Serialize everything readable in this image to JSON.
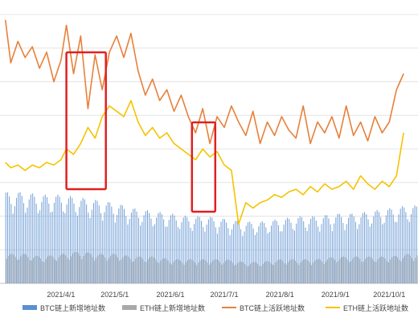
{
  "chart_data": {
    "type": "line",
    "title": "",
    "xlabel": "",
    "ylabel": "",
    "x_ticks": [
      "2021/4/1",
      "2021/5/1",
      "2021/6/1",
      "2021/7/1",
      "2021/8/1",
      "2021/9/1",
      "2021/10/1"
    ],
    "y_range_relative": [
      0,
      1
    ],
    "grid": "horizontal",
    "legend_position": "bottom",
    "highlight_boxes": [
      {
        "from": "2021/4/4",
        "to": "2021/4/26",
        "color": "#e02020"
      },
      {
        "from": "2021/6/13",
        "to": "2021/6/26",
        "color": "#e02020"
      }
    ],
    "series": [
      {
        "name": "BTC链上新增地址数",
        "type": "bar",
        "color": "#5b8fd0",
        "dates": [
          "2021/3/1",
          "2021/3/11",
          "2021/3/21",
          "2021/4/1",
          "2021/4/11",
          "2021/4/21",
          "2021/5/1",
          "2021/5/11",
          "2021/5/21",
          "2021/6/1",
          "2021/6/11",
          "2021/6/21",
          "2021/7/1",
          "2021/7/11",
          "2021/7/21",
          "2021/8/1",
          "2021/8/11",
          "2021/8/21",
          "2021/9/1",
          "2021/9/11",
          "2021/9/21",
          "2021/10/1",
          "2021/10/11"
        ],
        "values": [
          0.34,
          0.34,
          0.33,
          0.33,
          0.32,
          0.31,
          0.3,
          0.28,
          0.27,
          0.26,
          0.25,
          0.25,
          0.24,
          0.23,
          0.23,
          0.24,
          0.25,
          0.25,
          0.26,
          0.26,
          0.27,
          0.28,
          0.29
        ]
      },
      {
        "name": "ETH链上新增地址数",
        "type": "bar",
        "color": "#a9a9a9",
        "dates": [
          "2021/3/1",
          "2021/3/11",
          "2021/3/21",
          "2021/4/1",
          "2021/4/11",
          "2021/4/21",
          "2021/5/1",
          "2021/5/11",
          "2021/5/21",
          "2021/6/1",
          "2021/6/11",
          "2021/6/21",
          "2021/7/1",
          "2021/7/11",
          "2021/7/21",
          "2021/8/1",
          "2021/8/11",
          "2021/8/21",
          "2021/9/1",
          "2021/9/11",
          "2021/9/21",
          "2021/10/1",
          "2021/10/11"
        ],
        "values": [
          0.11,
          0.11,
          0.1,
          0.11,
          0.12,
          0.11,
          0.11,
          0.1,
          0.1,
          0.09,
          0.09,
          0.09,
          0.09,
          0.08,
          0.08,
          0.09,
          0.09,
          0.09,
          0.1,
          0.1,
          0.1,
          0.1,
          0.11
        ]
      },
      {
        "name": "BTC链上活跃地址数",
        "type": "line",
        "color": "#e8803a",
        "dates": [
          "2021/3/1",
          "2021/3/4",
          "2021/3/8",
          "2021/3/12",
          "2021/3/16",
          "2021/3/20",
          "2021/3/24",
          "2021/3/28",
          "2021/4/1",
          "2021/4/4",
          "2021/4/8",
          "2021/4/12",
          "2021/4/16",
          "2021/4/20",
          "2021/4/24",
          "2021/4/28",
          "2021/5/2",
          "2021/5/6",
          "2021/5/10",
          "2021/5/14",
          "2021/5/18",
          "2021/5/22",
          "2021/5/26",
          "2021/5/30",
          "2021/6/3",
          "2021/6/7",
          "2021/6/11",
          "2021/6/15",
          "2021/6/19",
          "2021/6/23",
          "2021/6/27",
          "2021/7/1",
          "2021/7/5",
          "2021/7/9",
          "2021/7/13",
          "2021/7/17",
          "2021/7/21",
          "2021/7/25",
          "2021/7/29",
          "2021/8/2",
          "2021/8/6",
          "2021/8/10",
          "2021/8/14",
          "2021/8/18",
          "2021/8/22",
          "2021/8/26",
          "2021/8/30",
          "2021/9/3",
          "2021/9/7",
          "2021/9/11",
          "2021/9/15",
          "2021/9/19",
          "2021/9/23",
          "2021/9/27",
          "2021/10/1",
          "2021/10/5",
          "2021/10/9"
        ],
        "values": [
          0.98,
          0.82,
          0.9,
          0.84,
          0.88,
          0.8,
          0.86,
          0.75,
          0.83,
          0.96,
          0.78,
          0.92,
          0.65,
          0.85,
          0.72,
          0.86,
          0.92,
          0.84,
          0.93,
          0.79,
          0.7,
          0.76,
          0.68,
          0.72,
          0.64,
          0.7,
          0.62,
          0.56,
          0.65,
          0.52,
          0.62,
          0.58,
          0.66,
          0.6,
          0.55,
          0.64,
          0.52,
          0.6,
          0.55,
          0.62,
          0.57,
          0.54,
          0.66,
          0.52,
          0.6,
          0.56,
          0.62,
          0.54,
          0.66,
          0.55,
          0.6,
          0.53,
          0.62,
          0.56,
          0.6,
          0.72,
          0.78
        ]
      },
      {
        "name": "ETH链上活跃地址数",
        "type": "line",
        "color": "#f5c300",
        "dates": [
          "2021/3/1",
          "2021/3/4",
          "2021/3/8",
          "2021/3/12",
          "2021/3/16",
          "2021/3/20",
          "2021/3/24",
          "2021/3/28",
          "2021/4/1",
          "2021/4/4",
          "2021/4/8",
          "2021/4/12",
          "2021/4/16",
          "2021/4/20",
          "2021/4/24",
          "2021/4/28",
          "2021/5/2",
          "2021/5/6",
          "2021/5/10",
          "2021/5/14",
          "2021/5/18",
          "2021/5/22",
          "2021/5/26",
          "2021/5/30",
          "2021/6/3",
          "2021/6/7",
          "2021/6/11",
          "2021/6/15",
          "2021/6/19",
          "2021/6/23",
          "2021/6/27",
          "2021/7/1",
          "2021/7/5",
          "2021/7/9",
          "2021/7/13",
          "2021/7/17",
          "2021/7/21",
          "2021/7/25",
          "2021/7/29",
          "2021/8/2",
          "2021/8/6",
          "2021/8/10",
          "2021/8/14",
          "2021/8/18",
          "2021/8/22",
          "2021/8/26",
          "2021/8/30",
          "2021/9/3",
          "2021/9/7",
          "2021/9/11",
          "2021/9/15",
          "2021/9/19",
          "2021/9/23",
          "2021/9/27",
          "2021/10/1",
          "2021/10/5",
          "2021/10/9"
        ],
        "values": [
          0.45,
          0.43,
          0.44,
          0.42,
          0.44,
          0.43,
          0.45,
          0.44,
          0.46,
          0.5,
          0.48,
          0.52,
          0.58,
          0.54,
          0.62,
          0.66,
          0.64,
          0.62,
          0.68,
          0.6,
          0.55,
          0.58,
          0.54,
          0.56,
          0.52,
          0.5,
          0.48,
          0.46,
          0.5,
          0.47,
          0.49,
          0.44,
          0.42,
          0.22,
          0.3,
          0.28,
          0.3,
          0.31,
          0.33,
          0.32,
          0.34,
          0.35,
          0.33,
          0.36,
          0.34,
          0.37,
          0.35,
          0.36,
          0.38,
          0.35,
          0.4,
          0.37,
          0.35,
          0.38,
          0.36,
          0.4,
          0.56
        ]
      }
    ]
  }
}
